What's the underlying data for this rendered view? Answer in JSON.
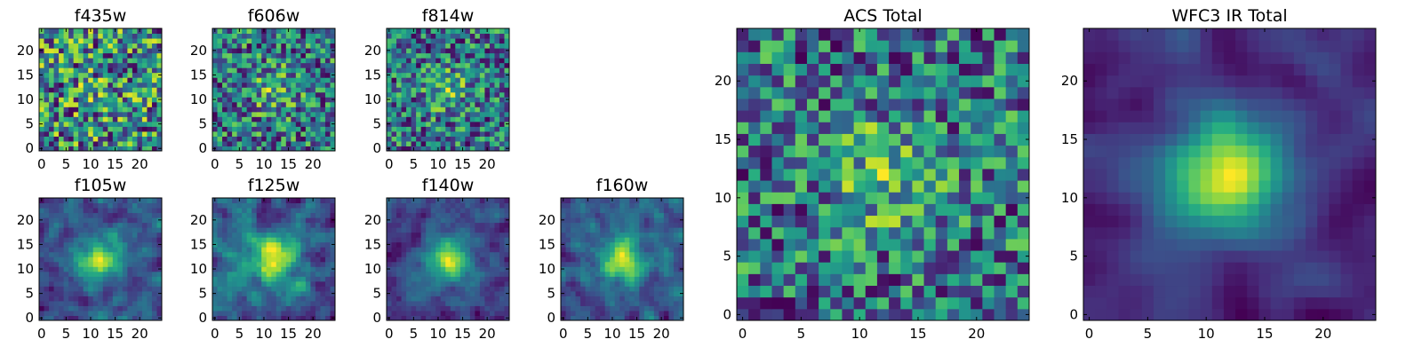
{
  "figure": {
    "colormap": "viridis",
    "colors": [
      "#440154",
      "#3b528b",
      "#21908d",
      "#5dc963",
      "#fde725"
    ]
  },
  "chart_data": [
    {
      "type": "heatmap",
      "title": "f435w",
      "grid_size": 25,
      "xlim": [
        0,
        24
      ],
      "ylim": [
        0,
        24
      ],
      "xticks": [
        "0",
        "5",
        "10",
        "15",
        "20"
      ],
      "yticks": [
        "0",
        "5",
        "10",
        "15",
        "20"
      ],
      "signal": 0.08,
      "noise": 0.5,
      "smooth": 0,
      "seed": 11
    },
    {
      "type": "heatmap",
      "title": "f606w",
      "grid_size": 25,
      "xlim": [
        0,
        24
      ],
      "ylim": [
        0,
        24
      ],
      "xticks": [
        "0",
        "5",
        "10",
        "15",
        "20"
      ],
      "yticks": [
        "0",
        "5",
        "10",
        "15",
        "20"
      ],
      "signal": 0.28,
      "noise": 0.45,
      "smooth": 0,
      "seed": 23
    },
    {
      "type": "heatmap",
      "title": "f814w",
      "grid_size": 25,
      "xlim": [
        0,
        24
      ],
      "ylim": [
        0,
        24
      ],
      "xticks": [
        "0",
        "5",
        "10",
        "15",
        "20"
      ],
      "yticks": [
        "0",
        "5",
        "10",
        "15",
        "20"
      ],
      "signal": 0.3,
      "noise": 0.45,
      "smooth": 0,
      "seed": 37
    },
    {
      "type": "heatmap",
      "title": "f105w",
      "grid_size": 25,
      "xlim": [
        0,
        24
      ],
      "ylim": [
        0,
        24
      ],
      "xticks": [
        "0",
        "5",
        "10",
        "15",
        "20"
      ],
      "yticks": [
        "0",
        "5",
        "10",
        "15",
        "20"
      ],
      "signal": 0.45,
      "noise": 0.3,
      "smooth": 1,
      "seed": 41
    },
    {
      "type": "heatmap",
      "title": "f125w",
      "grid_size": 25,
      "xlim": [
        0,
        24
      ],
      "ylim": [
        0,
        24
      ],
      "xticks": [
        "0",
        "5",
        "10",
        "15",
        "20"
      ],
      "yticks": [
        "0",
        "5",
        "10",
        "15",
        "20"
      ],
      "signal": 0.42,
      "noise": 0.3,
      "smooth": 1,
      "seed": 53
    },
    {
      "type": "heatmap",
      "title": "f140w",
      "grid_size": 25,
      "xlim": [
        0,
        24
      ],
      "ylim": [
        0,
        24
      ],
      "xticks": [
        "0",
        "5",
        "10",
        "15",
        "20"
      ],
      "yticks": [
        "0",
        "5",
        "10",
        "15",
        "20"
      ],
      "signal": 0.55,
      "noise": 0.28,
      "smooth": 1,
      "seed": 67
    },
    {
      "type": "heatmap",
      "title": "f160w",
      "grid_size": 25,
      "xlim": [
        0,
        24
      ],
      "ylim": [
        0,
        24
      ],
      "xticks": [
        "0",
        "5",
        "10",
        "15",
        "20"
      ],
      "yticks": [
        "0",
        "5",
        "10",
        "15",
        "20"
      ],
      "signal": 0.5,
      "noise": 0.3,
      "smooth": 1,
      "seed": 79
    },
    {
      "type": "heatmap",
      "title": "ACS Total",
      "grid_size": 25,
      "xlim": [
        0,
        24
      ],
      "ylim": [
        0,
        24
      ],
      "xticks": [
        "0",
        "5",
        "10",
        "15",
        "20"
      ],
      "yticks": [
        "0",
        "5",
        "10",
        "15",
        "20"
      ],
      "signal": 0.3,
      "noise": 0.4,
      "smooth": 0,
      "seed": 97
    },
    {
      "type": "heatmap",
      "title": "WFC3 IR Total",
      "grid_size": 25,
      "xlim": [
        0,
        24
      ],
      "ylim": [
        0,
        24
      ],
      "xticks": [
        "0",
        "5",
        "10",
        "15",
        "20"
      ],
      "yticks": [
        "0",
        "5",
        "10",
        "15",
        "20"
      ],
      "signal": 0.65,
      "noise": 0.22,
      "smooth": 2,
      "seed": 101
    }
  ]
}
